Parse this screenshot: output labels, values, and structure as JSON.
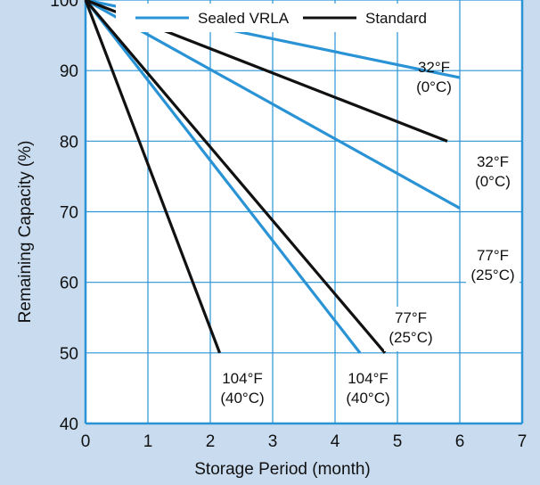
{
  "colors": {
    "background": "#c9dcef",
    "plot_background": "#ffffff",
    "grid": "#2a93d5",
    "sealed_vrla": "#2a93d5",
    "standard": "#111111"
  },
  "chart_data": {
    "type": "line",
    "xlabel": "Storage Period (month)",
    "ylabel": "Remaining Capacity (%)",
    "xlim": [
      0,
      7
    ],
    "ylim": [
      40,
      100
    ],
    "x_ticks": [
      "0",
      "1",
      "2",
      "3",
      "4",
      "5",
      "6",
      "7"
    ],
    "y_ticks": [
      "40",
      "50",
      "60",
      "70",
      "80",
      "90",
      "100"
    ],
    "grid": true,
    "legend_placement": "top",
    "legend": [
      {
        "label": "Sealed VRLA",
        "color": "#2a93d5"
      },
      {
        "label": "Standard",
        "color": "#111111"
      }
    ],
    "series": [
      {
        "group": "Sealed VRLA",
        "temperature": "32°F (0°C)",
        "x": [
          0,
          6
        ],
        "y": [
          100,
          89
        ]
      },
      {
        "group": "Sealed VRLA",
        "temperature": "77°F (25°C)",
        "x": [
          0,
          6
        ],
        "y": [
          100,
          70.5
        ]
      },
      {
        "group": "Sealed VRLA",
        "temperature": "104°F (40°C)",
        "x": [
          0,
          4.4
        ],
        "y": [
          100,
          50
        ]
      },
      {
        "group": "Standard",
        "temperature": "32°F (0°C)",
        "x": [
          0,
          5.8
        ],
        "y": [
          100,
          80
        ]
      },
      {
        "group": "Standard",
        "temperature": "77°F (25°C)",
        "x": [
          0,
          4.8
        ],
        "y": [
          100,
          50
        ]
      },
      {
        "group": "Standard",
        "temperature": "104°F (40°C)",
        "x": [
          0,
          2.15
        ],
        "y": [
          100,
          50
        ]
      }
    ],
    "annotations": [
      {
        "id": "a1",
        "lines": [
          "32°F",
          "(0°C)"
        ]
      },
      {
        "id": "a2",
        "lines": [
          "32°F",
          "(0°C)"
        ]
      },
      {
        "id": "a3",
        "lines": [
          "77°F",
          "(25°C)"
        ]
      },
      {
        "id": "a4",
        "lines": [
          "77°F",
          "(25°C)"
        ]
      },
      {
        "id": "a5",
        "lines": [
          "104°F",
          "(40°C)"
        ]
      },
      {
        "id": "a6",
        "lines": [
          "104°F",
          "(40°C)"
        ]
      }
    ]
  }
}
